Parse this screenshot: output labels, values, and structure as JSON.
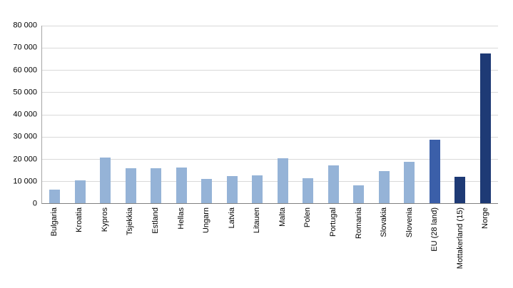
{
  "chart_data": {
    "type": "bar",
    "title": "",
    "xlabel": "",
    "ylabel": "",
    "categories": [
      "Bulgaria",
      "Kroatia",
      "Kypros",
      "Tsjekkia",
      "Estland",
      "Hellas",
      "Ungarn",
      "Latvia",
      "Litauen",
      "Malta",
      "Polen",
      "Portugal",
      "Romania",
      "Slovakia",
      "Slovenia",
      "EU (28 land)",
      "Mottakerland (15)",
      "Norge"
    ],
    "values": [
      6000,
      10300,
      20500,
      15700,
      15600,
      16100,
      10900,
      12100,
      12600,
      20300,
      11200,
      17100,
      8000,
      14400,
      18500,
      28700,
      12000,
      67500
    ],
    "bar_colors": [
      "light",
      "light",
      "light",
      "light",
      "light",
      "light",
      "light",
      "light",
      "light",
      "light",
      "light",
      "light",
      "light",
      "light",
      "light",
      "medium",
      "dark",
      "dark"
    ],
    "palette": {
      "light": "#95b3d7",
      "medium": "#3b5fa9",
      "dark": "#1e3a75"
    },
    "ylim": [
      0,
      80000
    ],
    "ytick_step": 10000,
    "ytick_labels": [
      "0",
      "10 000",
      "20 000",
      "30 000",
      "40 000",
      "50 000",
      "60 000",
      "70 000",
      "80 000"
    ],
    "grid": true,
    "legend_position": "none"
  }
}
